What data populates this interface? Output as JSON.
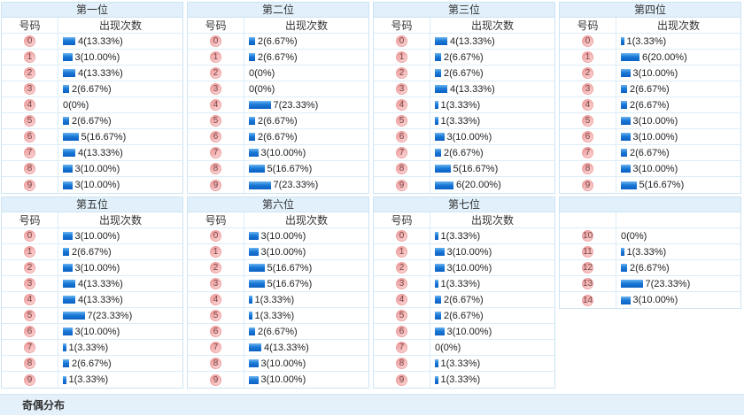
{
  "labels": {
    "number_header": "号码",
    "count_header": "出现次数"
  },
  "colors": {
    "band_blue": "#e1f0fa",
    "border_blue": "#cde4f3",
    "bar_blue_top": "#6cb5f1",
    "bar_blue_bottom": "#0a60c4",
    "badge_pink": "#f6b2b2",
    "badge_border": "#eda3a3"
  },
  "footer": {
    "title": "奇偶分布"
  },
  "chart_data": {
    "type": "table",
    "description_format": "count(percent)",
    "tables": [
      {
        "title": "第一位",
        "number_header": "号码",
        "count_header": "出现次数",
        "rows": [
          {
            "number": "0",
            "count": 4,
            "label": "4(13.33%)"
          },
          {
            "number": "1",
            "count": 3,
            "label": "3(10.00%)"
          },
          {
            "number": "2",
            "count": 4,
            "label": "4(13.33%)"
          },
          {
            "number": "3",
            "count": 2,
            "label": "2(6.67%)"
          },
          {
            "number": "4",
            "count": 0,
            "label": "0(0%)"
          },
          {
            "number": "5",
            "count": 2,
            "label": "2(6.67%)"
          },
          {
            "number": "6",
            "count": 5,
            "label": "5(16.67%)"
          },
          {
            "number": "7",
            "count": 4,
            "label": "4(13.33%)"
          },
          {
            "number": "8",
            "count": 3,
            "label": "3(10.00%)"
          },
          {
            "number": "9",
            "count": 3,
            "label": "3(10.00%)"
          }
        ]
      },
      {
        "title": "第二位",
        "number_header": "号码",
        "count_header": "出现次数",
        "rows": [
          {
            "number": "0",
            "count": 2,
            "label": "2(6.67%)"
          },
          {
            "number": "1",
            "count": 2,
            "label": "2(6.67%)"
          },
          {
            "number": "2",
            "count": 0,
            "label": "0(0%)"
          },
          {
            "number": "3",
            "count": 0,
            "label": "0(0%)"
          },
          {
            "number": "4",
            "count": 7,
            "label": "7(23.33%)"
          },
          {
            "number": "5",
            "count": 2,
            "label": "2(6.67%)"
          },
          {
            "number": "6",
            "count": 2,
            "label": "2(6.67%)"
          },
          {
            "number": "7",
            "count": 3,
            "label": "3(10.00%)"
          },
          {
            "number": "8",
            "count": 5,
            "label": "5(16.67%)"
          },
          {
            "number": "9",
            "count": 7,
            "label": "7(23.33%)"
          }
        ]
      },
      {
        "title": "第三位",
        "number_header": "号码",
        "count_header": "出现次数",
        "rows": [
          {
            "number": "0",
            "count": 4,
            "label": "4(13.33%)"
          },
          {
            "number": "1",
            "count": 2,
            "label": "2(6.67%)"
          },
          {
            "number": "2",
            "count": 2,
            "label": "2(6.67%)"
          },
          {
            "number": "3",
            "count": 4,
            "label": "4(13.33%)"
          },
          {
            "number": "4",
            "count": 1,
            "label": "1(3.33%)"
          },
          {
            "number": "5",
            "count": 1,
            "label": "1(3.33%)"
          },
          {
            "number": "6",
            "count": 3,
            "label": "3(10.00%)"
          },
          {
            "number": "7",
            "count": 2,
            "label": "2(6.67%)"
          },
          {
            "number": "8",
            "count": 5,
            "label": "5(16.67%)"
          },
          {
            "number": "9",
            "count": 6,
            "label": "6(20.00%)"
          }
        ]
      },
      {
        "title": "第四位",
        "number_header": "号码",
        "count_header": "出现次数",
        "rows": [
          {
            "number": "0",
            "count": 1,
            "label": "1(3.33%)"
          },
          {
            "number": "1",
            "count": 6,
            "label": "6(20.00%)"
          },
          {
            "number": "2",
            "count": 3,
            "label": "3(10.00%)"
          },
          {
            "number": "3",
            "count": 2,
            "label": "2(6.67%)"
          },
          {
            "number": "4",
            "count": 2,
            "label": "2(6.67%)"
          },
          {
            "number": "5",
            "count": 3,
            "label": "3(10.00%)"
          },
          {
            "number": "6",
            "count": 3,
            "label": "3(10.00%)"
          },
          {
            "number": "7",
            "count": 2,
            "label": "2(6.67%)"
          },
          {
            "number": "8",
            "count": 3,
            "label": "3(10.00%)"
          },
          {
            "number": "9",
            "count": 5,
            "label": "5(16.67%)"
          }
        ]
      },
      {
        "title": "第五位",
        "number_header": "号码",
        "count_header": "出现次数",
        "rows": [
          {
            "number": "0",
            "count": 3,
            "label": "3(10.00%)"
          },
          {
            "number": "1",
            "count": 2,
            "label": "2(6.67%)"
          },
          {
            "number": "2",
            "count": 3,
            "label": "3(10.00%)"
          },
          {
            "number": "3",
            "count": 4,
            "label": "4(13.33%)"
          },
          {
            "number": "4",
            "count": 4,
            "label": "4(13.33%)"
          },
          {
            "number": "5",
            "count": 7,
            "label": "7(23.33%)"
          },
          {
            "number": "6",
            "count": 3,
            "label": "3(10.00%)"
          },
          {
            "number": "7",
            "count": 1,
            "label": "1(3.33%)"
          },
          {
            "number": "8",
            "count": 2,
            "label": "2(6.67%)"
          },
          {
            "number": "9",
            "count": 1,
            "label": "1(3.33%)"
          }
        ]
      },
      {
        "title": "第六位",
        "number_header": "号码",
        "count_header": "出现次数",
        "rows": [
          {
            "number": "0",
            "count": 3,
            "label": "3(10.00%)"
          },
          {
            "number": "1",
            "count": 3,
            "label": "3(10.00%)"
          },
          {
            "number": "2",
            "count": 5,
            "label": "5(16.67%)"
          },
          {
            "number": "3",
            "count": 5,
            "label": "5(16.67%)"
          },
          {
            "number": "4",
            "count": 1,
            "label": "1(3.33%)"
          },
          {
            "number": "5",
            "count": 1,
            "label": "1(3.33%)"
          },
          {
            "number": "6",
            "count": 2,
            "label": "2(6.67%)"
          },
          {
            "number": "7",
            "count": 4,
            "label": "4(13.33%)"
          },
          {
            "number": "8",
            "count": 3,
            "label": "3(10.00%)"
          },
          {
            "number": "9",
            "count": 3,
            "label": "3(10.00%)"
          }
        ]
      },
      {
        "title": "第七位",
        "number_header": "号码",
        "count_header": "出现次数",
        "rows": [
          {
            "number": "0",
            "count": 1,
            "label": "1(3.33%)"
          },
          {
            "number": "1",
            "count": 3,
            "label": "3(10.00%)"
          },
          {
            "number": "2",
            "count": 3,
            "label": "3(10.00%)"
          },
          {
            "number": "3",
            "count": 1,
            "label": "1(3.33%)"
          },
          {
            "number": "4",
            "count": 2,
            "label": "2(6.67%)"
          },
          {
            "number": "5",
            "count": 2,
            "label": "2(6.67%)"
          },
          {
            "number": "6",
            "count": 3,
            "label": "3(10.00%)"
          },
          {
            "number": "7",
            "count": 0,
            "label": "0(0%)"
          },
          {
            "number": "8",
            "count": 1,
            "label": "1(3.33%)"
          },
          {
            "number": "9",
            "count": 1,
            "label": "1(3.33%)"
          }
        ]
      },
      {
        "title": "",
        "number_header": "",
        "count_header": "",
        "rows": [
          {
            "number": "10",
            "count": 0,
            "label": "0(0%)"
          },
          {
            "number": "11",
            "count": 1,
            "label": "1(3.33%)"
          },
          {
            "number": "12",
            "count": 2,
            "label": "2(6.67%)"
          },
          {
            "number": "13",
            "count": 7,
            "label": "7(23.33%)"
          },
          {
            "number": "14",
            "count": 3,
            "label": "3(10.00%)"
          }
        ]
      }
    ]
  }
}
